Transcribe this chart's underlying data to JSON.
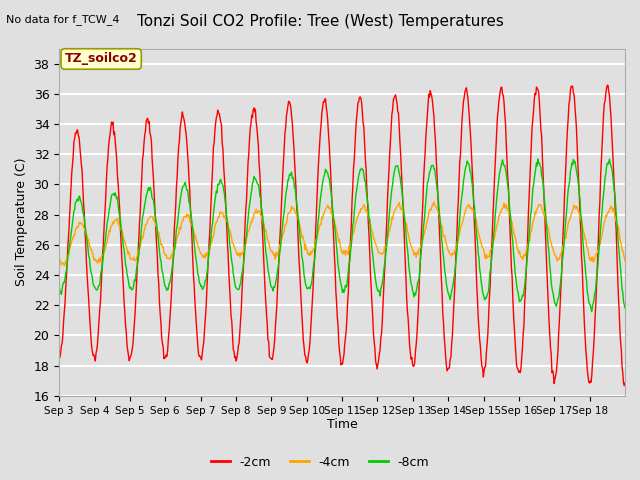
{
  "title": "Tonzi Soil CO2 Profile: Tree (West) Temperatures",
  "no_data_text": "No data for f_TCW_4",
  "ylabel": "Soil Temperature (C)",
  "xlabel": "Time",
  "annotation_label": "TZ_soilco2",
  "ylim": [
    16,
    39
  ],
  "background_color": "#e0e0e0",
  "axes_bg_color": "#e0e0e0",
  "grid_color": "white",
  "series": [
    {
      "label": "-2cm",
      "color": "#ff0000"
    },
    {
      "label": "-4cm",
      "color": "#ffa500"
    },
    {
      "label": "-8cm",
      "color": "#00cc00"
    }
  ],
  "xtick_labels": [
    "Sep 3",
    "Sep 4",
    "Sep 5",
    "Sep 6",
    "Sep 7",
    "Sep 8",
    "Sep 9",
    "Sep 10",
    "Sep 11",
    "Sep 12",
    "Sep 13",
    "Sep 14",
    "Sep 15",
    "Sep 16",
    "Sep 17",
    "Sep 18"
  ],
  "n_days": 16,
  "samples_per_day": 48
}
